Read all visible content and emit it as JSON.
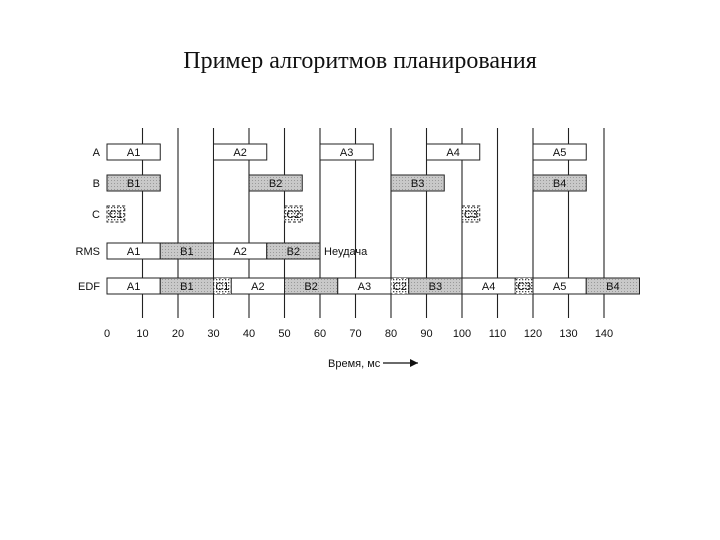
{
  "title": "Пример алгоритмов планирования",
  "rows": [
    {
      "label": "A",
      "tasks": [
        {
          "name": "A1",
          "start": 0,
          "end": 15,
          "fill": "white"
        },
        {
          "name": "A2",
          "start": 30,
          "end": 45,
          "fill": "white"
        },
        {
          "name": "A3",
          "start": 60,
          "end": 75,
          "fill": "white"
        },
        {
          "name": "A4",
          "start": 90,
          "end": 105,
          "fill": "white"
        },
        {
          "name": "A5",
          "start": 120,
          "end": 135,
          "fill": "white"
        }
      ]
    },
    {
      "label": "B",
      "tasks": [
        {
          "name": "B1",
          "start": 0,
          "end": 15,
          "fill": "gray"
        },
        {
          "name": "B2",
          "start": 40,
          "end": 55,
          "fill": "gray"
        },
        {
          "name": "B3",
          "start": 80,
          "end": 95,
          "fill": "gray"
        },
        {
          "name": "B4",
          "start": 120,
          "end": 135,
          "fill": "gray"
        }
      ]
    },
    {
      "label": "C",
      "tasks": [
        {
          "name": "C1",
          "start": 0,
          "end": 5,
          "fill": "dots"
        },
        {
          "name": "C2",
          "start": 50,
          "end": 55,
          "fill": "dots"
        },
        {
          "name": "C3",
          "start": 100,
          "end": 105,
          "fill": "dots"
        }
      ]
    },
    {
      "label": "RMS",
      "tasks": [
        {
          "name": "A1",
          "start": 0,
          "end": 15,
          "fill": "white"
        },
        {
          "name": "B1",
          "start": 15,
          "end": 30,
          "fill": "gray"
        },
        {
          "name": "A2",
          "start": 30,
          "end": 45,
          "fill": "white"
        },
        {
          "name": "B2",
          "start": 45,
          "end": 60,
          "fill": "gray"
        }
      ],
      "note": "Неудача"
    },
    {
      "label": "EDF",
      "tasks": [
        {
          "name": "A1",
          "start": 0,
          "end": 15,
          "fill": "white"
        },
        {
          "name": "B1",
          "start": 15,
          "end": 30,
          "fill": "gray"
        },
        {
          "name": "C1",
          "start": 30,
          "end": 35,
          "fill": "dots"
        },
        {
          "name": "A2",
          "start": 35,
          "end": 50,
          "fill": "white"
        },
        {
          "name": "B2",
          "start": 50,
          "end": 65,
          "fill": "gray"
        },
        {
          "name": "A3",
          "start": 65,
          "end": 80,
          "fill": "white"
        },
        {
          "name": "C2",
          "start": 80,
          "end": 85,
          "fill": "dots"
        },
        {
          "name": "B3",
          "start": 85,
          "end": 100,
          "fill": "gray"
        },
        {
          "name": "A4",
          "start": 100,
          "end": 115,
          "fill": "white"
        },
        {
          "name": "C3",
          "start": 115,
          "end": 120,
          "fill": "dots"
        },
        {
          "name": "A5",
          "start": 120,
          "end": 135,
          "fill": "white"
        },
        {
          "name": "B4",
          "start": 135,
          "end": 150,
          "fill": "gray"
        }
      ]
    }
  ],
  "axis": {
    "ticks": [
      "0",
      "10",
      "20",
      "30",
      "40",
      "50",
      "60",
      "70",
      "80",
      "90",
      "100",
      "110",
      "120",
      "130",
      "140"
    ],
    "label": "Время, мс"
  },
  "deadlines_ms": [
    10,
    20,
    30,
    40,
    50,
    60,
    70,
    80,
    90,
    100,
    110,
    120,
    130,
    140
  ]
}
